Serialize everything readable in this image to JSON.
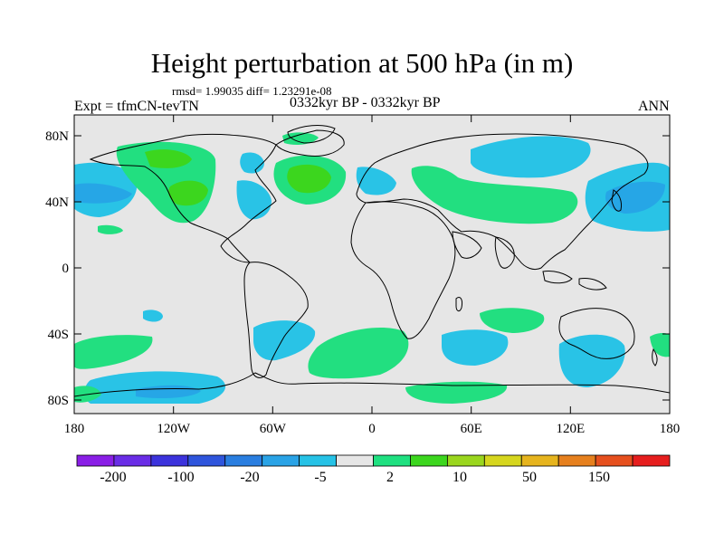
{
  "title": "Height perturbation at 500 hPa (in m)",
  "stats": "rmsd= 1.99035 diff= 1.23291e-08",
  "experiment": "Expt = tfmCN-tevTN",
  "period": "0332kyr BP - 0332kyr BP",
  "season": "ANN",
  "axes": {
    "y_ticks": [
      "80N",
      "40N",
      "0",
      "40S",
      "80S"
    ],
    "x_ticks": [
      "180",
      "120W",
      "60W",
      "0",
      "60E",
      "120E",
      "180"
    ]
  },
  "colorbar": {
    "colors": [
      "#8a1fe6",
      "#6a2de6",
      "#3c33dc",
      "#2f55dc",
      "#2a7ee0",
      "#2aa3e6",
      "#26c2e6",
      "#e6e6e6",
      "#1fe080",
      "#3cd61e",
      "#9ad61e",
      "#d6d61e",
      "#e6b41e",
      "#e6801e",
      "#e6501e",
      "#e61e1e"
    ],
    "labels": [
      "-200",
      "-100",
      "-20",
      "-5",
      "2",
      "10",
      "50",
      "150"
    ]
  },
  "legend_colors": {
    "light_blue": "#29c3e6",
    "mid_blue": "#26a6e6",
    "green": "#22df80",
    "bright_green": "#3cd61e",
    "olive": "#7dc81e",
    "background": "#e6e6e6"
  }
}
